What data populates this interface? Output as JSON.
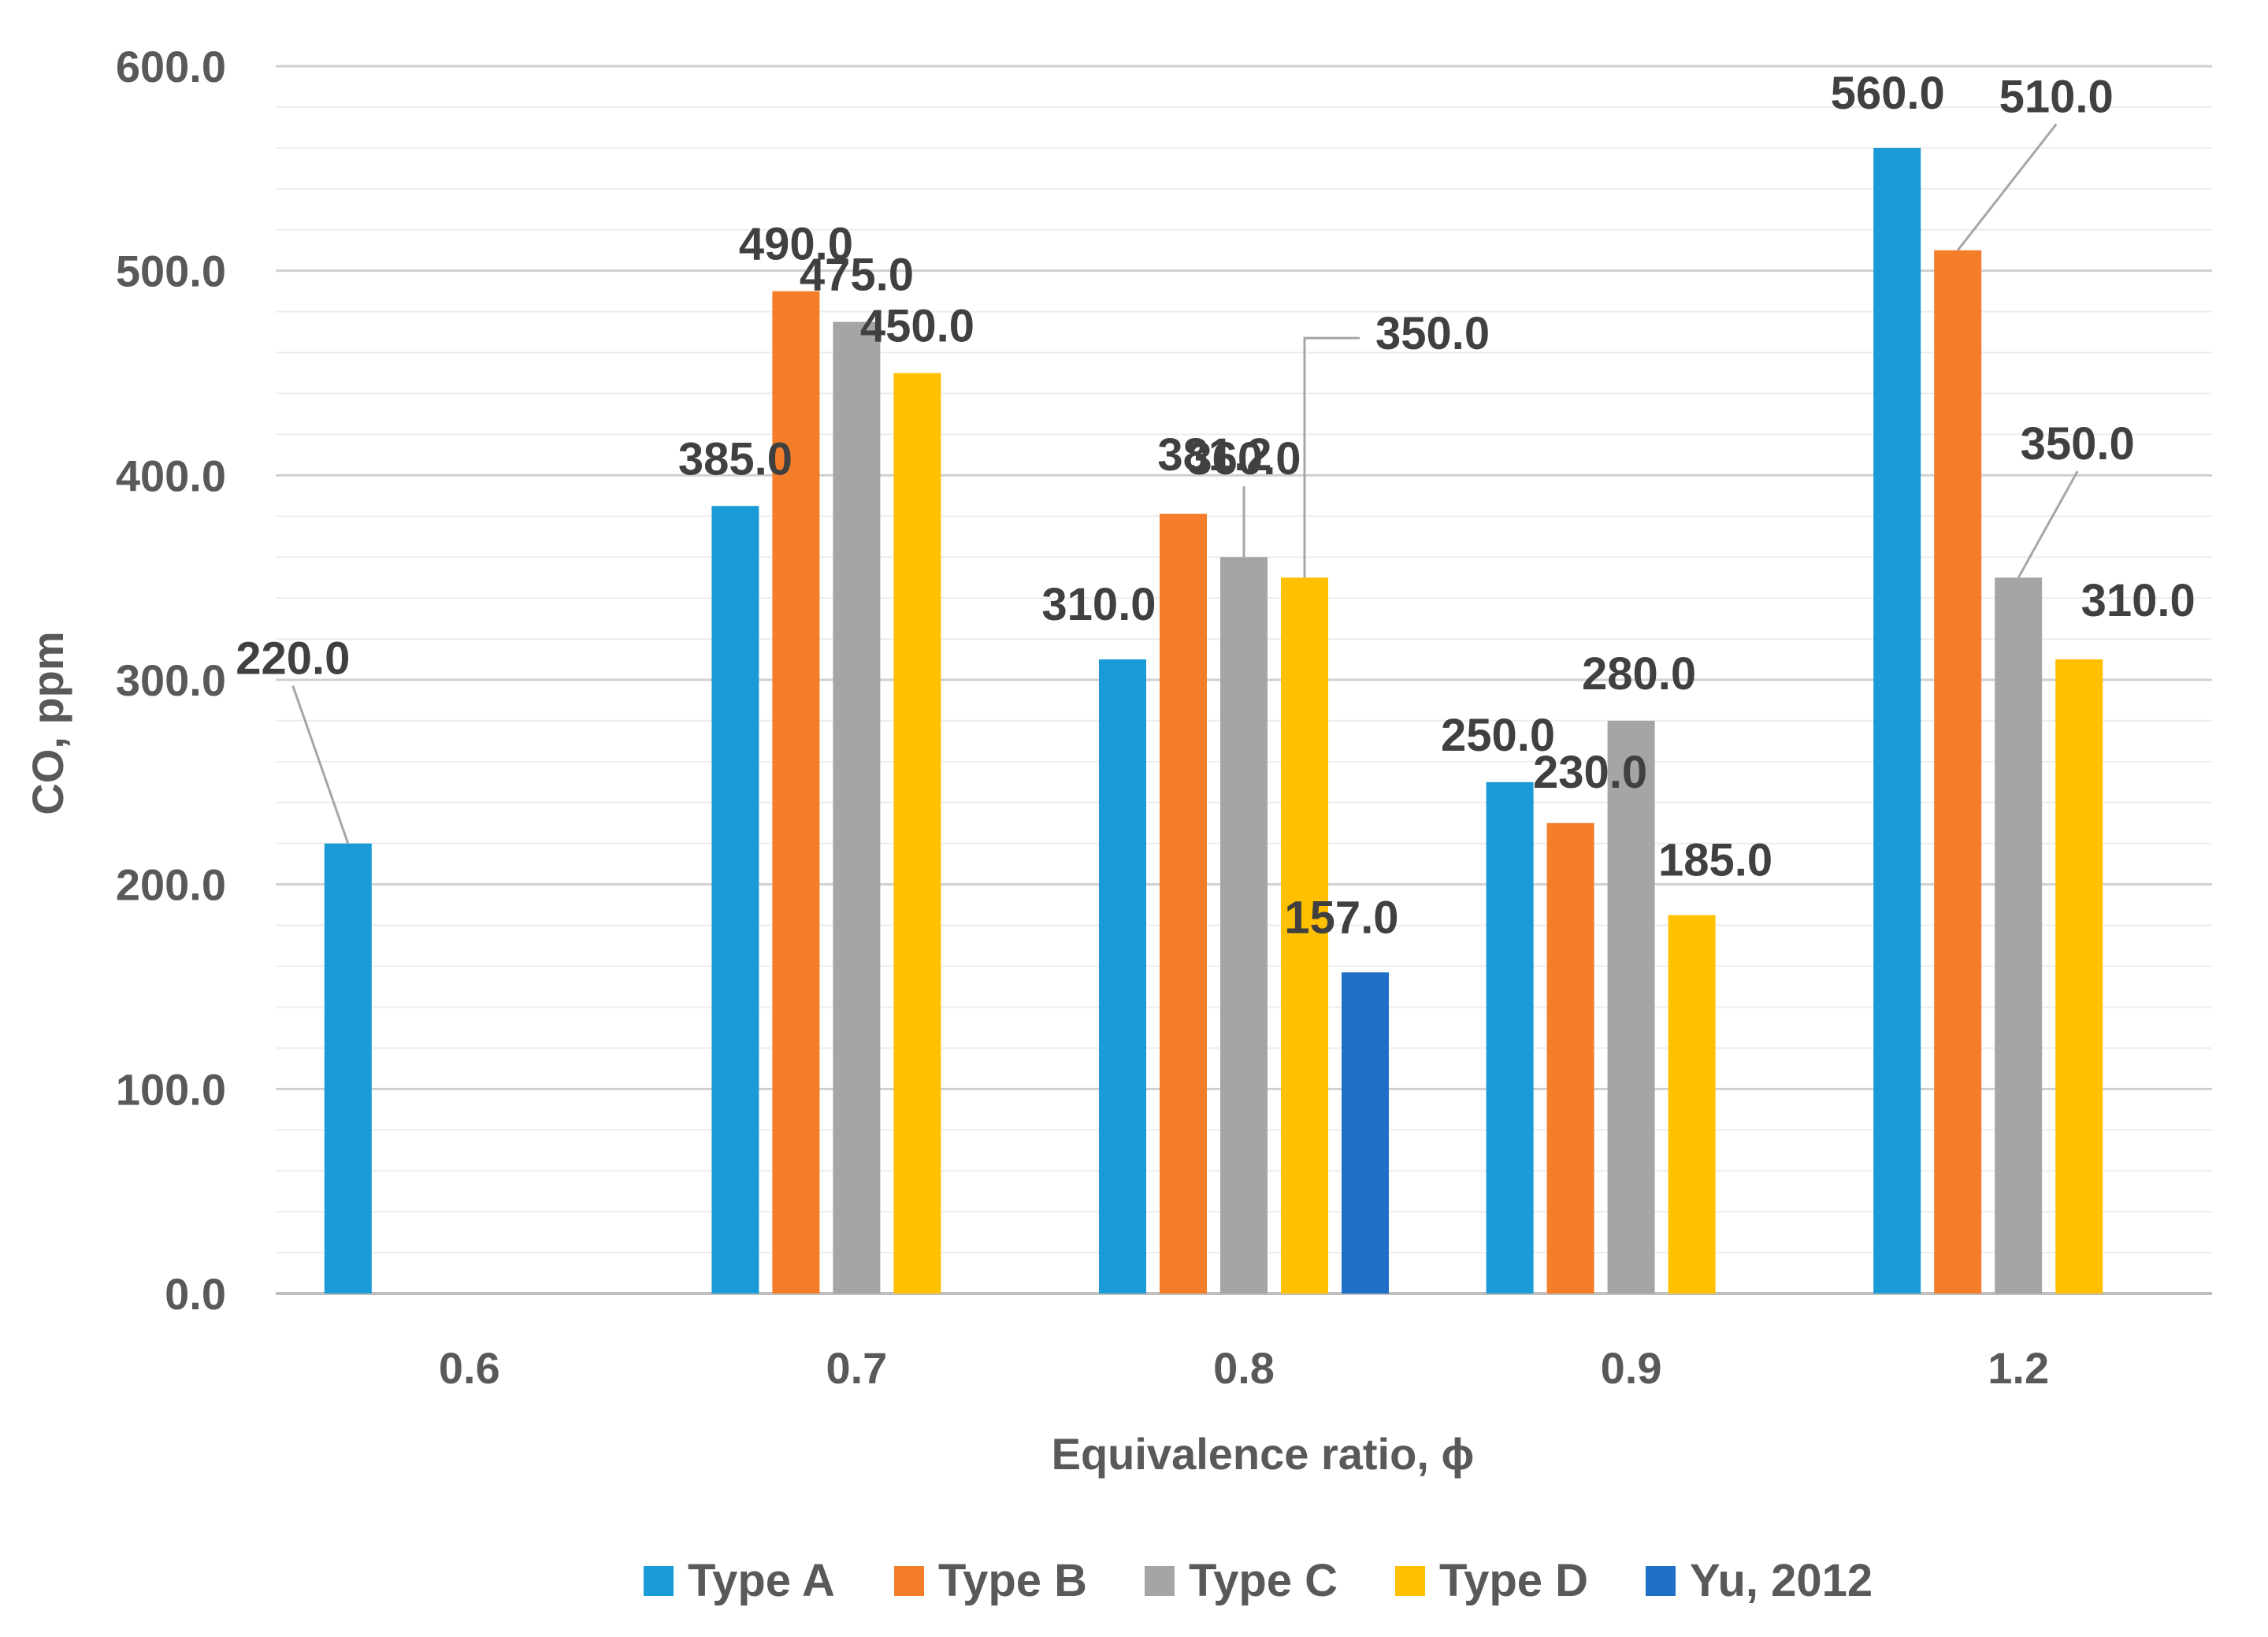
{
  "chart_data": {
    "type": "bar",
    "title": "",
    "xlabel": "Equivalence ratio, ϕ",
    "ylabel": "CO, ppm",
    "ylim": [
      0,
      600
    ],
    "yticks": [
      0,
      100,
      200,
      300,
      400,
      500,
      600
    ],
    "ytick_labels": [
      "0.0",
      "100.0",
      "200.0",
      "300.0",
      "400.0",
      "500.0",
      "600.0"
    ],
    "minor_gridline_step": 20,
    "grid": true,
    "legend_position": "bottom",
    "categories": [
      "0.6",
      "0.7",
      "0.8",
      "0.9",
      "1.2"
    ],
    "series": [
      {
        "name": "Type A",
        "color": "#1A9BD7",
        "values": [
          220,
          385,
          310,
          250,
          560
        ],
        "labels": [
          "220.0",
          "385.0",
          "310.0",
          "250.0",
          "560.0"
        ]
      },
      {
        "name": "Type B",
        "color": "#F47D2A",
        "values": [
          null,
          490,
          381.2,
          230,
          510
        ],
        "labels": [
          null,
          "490.0",
          "381.2",
          "230.0",
          "510.0"
        ]
      },
      {
        "name": "Type C",
        "color": "#A5A5A5",
        "values": [
          null,
          475,
          360,
          280,
          350
        ],
        "labels": [
          null,
          "475.0",
          "360.0",
          "280.0",
          "350.0"
        ]
      },
      {
        "name": "Type D",
        "color": "#FFC000",
        "values": [
          null,
          450,
          350,
          185,
          310
        ],
        "labels": [
          null,
          "450.0",
          "350.0",
          "185.0",
          "310.0"
        ]
      },
      {
        "name": "Yu, 2012",
        "color": "#1F6FC6",
        "values": [
          null,
          null,
          157,
          null,
          null
        ],
        "labels": [
          null,
          null,
          "157.0",
          null,
          null
        ]
      }
    ]
  }
}
